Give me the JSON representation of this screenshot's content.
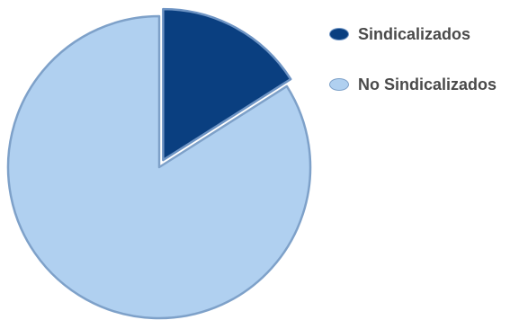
{
  "chart_data": {
    "type": "pie",
    "title": "",
    "slices": [
      {
        "label": "Sindicalizados",
        "value": 16,
        "color": "#0a3f80",
        "stroke": "#6e94c4"
      },
      {
        "label": "No Sindicalizados",
        "value": 84,
        "color": "#b0d0f0",
        "stroke": "#7ea1c9"
      }
    ],
    "legend_position": "top-right",
    "exploded_slice": "Sindicalizados"
  }
}
